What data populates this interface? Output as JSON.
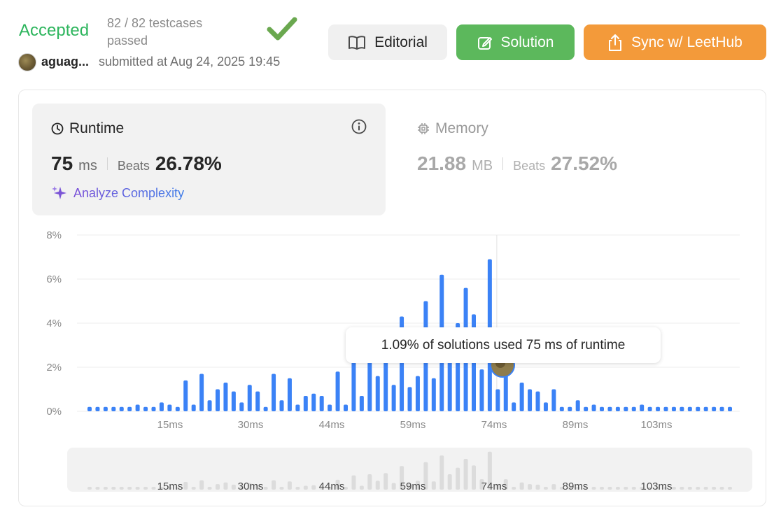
{
  "header": {
    "status": "Accepted",
    "testcases": "82 / 82 testcases passed",
    "username": "aguag...",
    "submitted": "submitted at Aug 24, 2025 19:45",
    "buttons": {
      "editorial": "Editorial",
      "solution": "Solution",
      "leethub": "Sync w/ LeetHub"
    }
  },
  "runtime": {
    "title": "Runtime",
    "value": "75",
    "unit": "ms",
    "beats_label": "Beats",
    "beats": "26.78%",
    "analyze": "Analyze Complexity"
  },
  "memory": {
    "title": "Memory",
    "value": "21.88",
    "unit": "MB",
    "beats_label": "Beats",
    "beats": "27.52%"
  },
  "tooltip": "1.09% of solutions used 75 ms of runtime",
  "colors": {
    "accepted": "#2db55d",
    "bar": "#3b82f6",
    "solution_btn": "#5cb85c",
    "leethub_btn": "#f39a3a",
    "analyze": "#7b55d6"
  },
  "chart_data": {
    "type": "bar",
    "yticks": [
      "0%",
      "2%",
      "4%",
      "6%",
      "8%"
    ],
    "ylim": [
      0,
      8
    ],
    "xticks": [
      "15ms",
      "30ms",
      "44ms",
      "59ms",
      "74ms",
      "89ms",
      "103ms"
    ],
    "highlight_ms": 75,
    "grid": true,
    "values": [
      0.2,
      0.2,
      0.2,
      0.2,
      0.2,
      0.2,
      0.3,
      0.2,
      0.2,
      0.4,
      0.3,
      0.2,
      1.4,
      0.3,
      1.7,
      0.5,
      1.0,
      1.3,
      0.9,
      0.4,
      1.2,
      0.9,
      0.2,
      1.7,
      0.5,
      1.5,
      0.3,
      0.7,
      0.8,
      0.7,
      0.3,
      1.8,
      0.3,
      2.6,
      0.7,
      2.8,
      1.6,
      3.0,
      1.2,
      4.3,
      1.1,
      1.6,
      5.0,
      1.5,
      6.2,
      2.8,
      4.0,
      5.6,
      4.4,
      1.9,
      6.9,
      1.0,
      1.9,
      0.4,
      1.3,
      1.0,
      0.9,
      0.4,
      1.0,
      0.2,
      0.2,
      0.5,
      0.2,
      0.3,
      0.2,
      0.2,
      0.2,
      0.2,
      0.2,
      0.3,
      0.2,
      0.2,
      0.2,
      0.2,
      0.2,
      0.2,
      0.2,
      0.2,
      0.2,
      0.2,
      0.2
    ]
  }
}
